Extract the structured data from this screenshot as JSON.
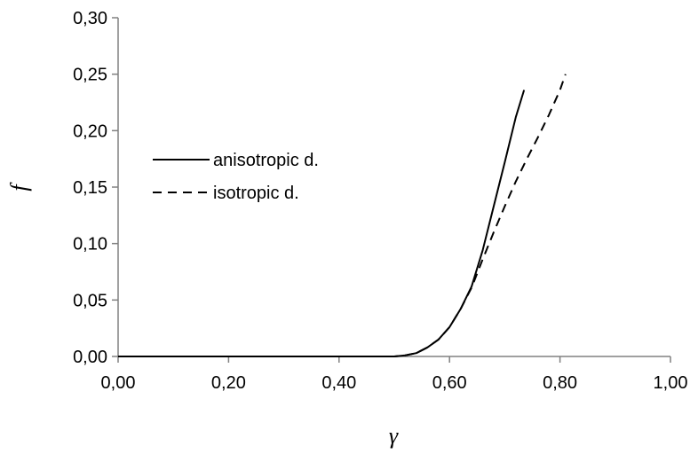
{
  "chart_data": {
    "type": "line",
    "title": "",
    "xlabel": "γ",
    "ylabel": "f",
    "xlim": [
      0.0,
      1.0
    ],
    "ylim": [
      0.0,
      0.3
    ],
    "xticks": [
      0.0,
      0.2,
      0.4,
      0.6,
      0.8,
      1.0
    ],
    "yticks": [
      0.0,
      0.05,
      0.1,
      0.15,
      0.2,
      0.25,
      0.3
    ],
    "xtick_labels": [
      "0,00",
      "0,20",
      "0,40",
      "0,60",
      "0,80",
      "1,00"
    ],
    "ytick_labels": [
      "0,00",
      "0,05",
      "0,10",
      "0,15",
      "0,20",
      "0,25",
      "0,30"
    ],
    "grid": false,
    "legend_position": "left-middle",
    "series": [
      {
        "name": "anisotropic d.",
        "style": "solid",
        "color": "#000000",
        "x": [
          0.0,
          0.45,
          0.5,
          0.52,
          0.54,
          0.56,
          0.58,
          0.6,
          0.62,
          0.64,
          0.66,
          0.68,
          0.7,
          0.72,
          0.735
        ],
        "y": [
          0.0,
          0.0,
          0.0,
          0.001,
          0.003,
          0.008,
          0.015,
          0.026,
          0.042,
          0.062,
          0.094,
          0.133,
          0.172,
          0.212,
          0.236
        ]
      },
      {
        "name": "isotropic d.",
        "style": "dashed",
        "color": "#000000",
        "x": [
          0.0,
          0.45,
          0.5,
          0.52,
          0.54,
          0.56,
          0.58,
          0.6,
          0.62,
          0.64,
          0.66,
          0.68,
          0.7,
          0.72,
          0.74,
          0.76,
          0.78,
          0.8,
          0.81
        ],
        "y": [
          0.0,
          0.0,
          0.0,
          0.001,
          0.003,
          0.008,
          0.015,
          0.026,
          0.042,
          0.061,
          0.086,
          0.11,
          0.133,
          0.155,
          0.175,
          0.194,
          0.214,
          0.236,
          0.25
        ]
      }
    ]
  }
}
